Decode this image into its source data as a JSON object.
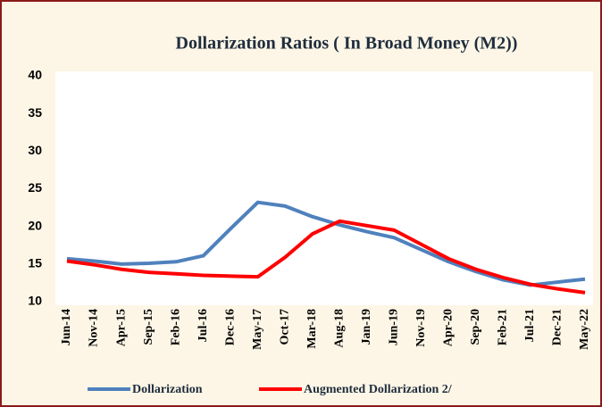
{
  "chart_data": {
    "type": "line",
    "title": "Dollarization Ratios (  In Broad Money (M2))",
    "categories": [
      "Jun-14",
      "Nov-14",
      "Apr-15",
      "Sep-15",
      "Feb-16",
      "Jul-16",
      "Dec-16",
      "May-17",
      "Oct-17",
      "Mar-18",
      "Aug-18",
      "Jan-19",
      "Jun-19",
      "Nov-19",
      "Apr-20",
      "Sep-20",
      "Feb-21",
      "Jul-21",
      "Dec-21",
      "May-22"
    ],
    "series": [
      {
        "name": "Dollarization",
        "color": "#4f81bd",
        "values": [
          15.7,
          15.4,
          15.0,
          15.1,
          15.3,
          16.1,
          19.7,
          23.2,
          22.7,
          21.3,
          20.2,
          19.3,
          18.5,
          16.9,
          15.3,
          14.0,
          12.9,
          12.2,
          12.6,
          13.0
        ]
      },
      {
        "name": "Augmented Dollarization 2/",
        "color": "#ff0000",
        "values": [
          15.4,
          14.9,
          14.3,
          13.9,
          13.7,
          13.5,
          13.4,
          13.3,
          15.9,
          19.0,
          20.7,
          20.1,
          19.5,
          17.6,
          15.7,
          14.3,
          13.2,
          12.3,
          11.7,
          11.2
        ]
      }
    ],
    "ylim": [
      10,
      40
    ],
    "yticks": [
      10,
      15,
      20,
      25,
      30,
      35,
      40
    ],
    "grid": false,
    "legend": "bottom"
  }
}
